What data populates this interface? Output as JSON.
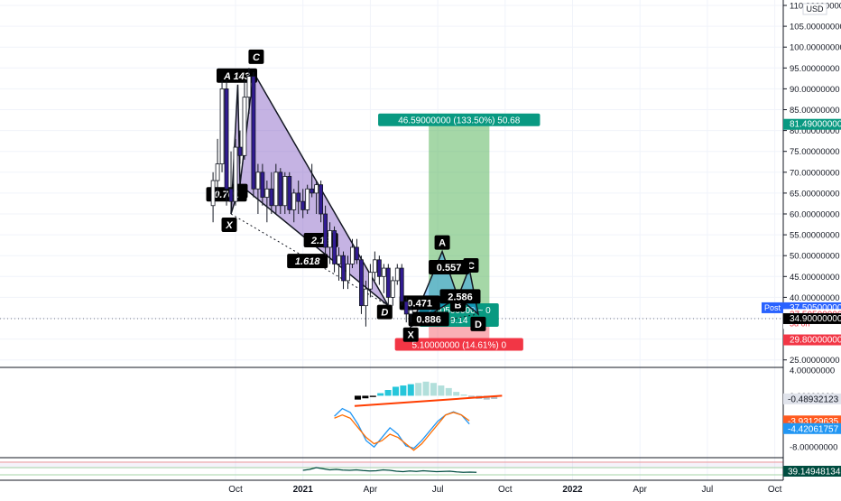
{
  "axis": {
    "currency": "USD",
    "price_ticks": [
      {
        "v": 110,
        "label": "110.00000000"
      },
      {
        "v": 105,
        "label": "105.00000000"
      },
      {
        "v": 100,
        "label": "100.00000000"
      },
      {
        "v": 95,
        "label": "95.00000000"
      },
      {
        "v": 90,
        "label": "90.00000000"
      },
      {
        "v": 85,
        "label": "85.00000000"
      },
      {
        "v": 80,
        "label": "80.00000000"
      },
      {
        "v": 75,
        "label": "75.00000000"
      },
      {
        "v": 70,
        "label": "70.00000000"
      },
      {
        "v": 65,
        "label": "65.00000000"
      },
      {
        "v": 60,
        "label": "60.00000000"
      },
      {
        "v": 55,
        "label": "55.00000000"
      },
      {
        "v": 50,
        "label": "50.00000000"
      },
      {
        "v": 45,
        "label": "45.00000000"
      },
      {
        "v": 40,
        "label": "40.00000000"
      },
      {
        "v": 35,
        "label": "35.00000000"
      },
      {
        "v": 30,
        "label": "30.00000000"
      },
      {
        "v": 25,
        "label": "25.00000000"
      }
    ],
    "time_ticks": [
      {
        "label": "Oct",
        "x": 10,
        "bold": false
      },
      {
        "label": "2021",
        "x": 13,
        "bold": true
      },
      {
        "label": "Apr",
        "x": 16,
        "bold": false
      },
      {
        "label": "Jul",
        "x": 19,
        "bold": false
      },
      {
        "label": "Oct",
        "x": 22,
        "bold": false
      },
      {
        "label": "2022",
        "x": 25,
        "bold": true
      },
      {
        "label": "Apr",
        "x": 28,
        "bold": false
      },
      {
        "label": "Jul",
        "x": 31,
        "bold": false
      },
      {
        "label": "Oct",
        "x": 34,
        "bold": false
      }
    ],
    "osc_ticks": [
      {
        "v": 4,
        "label": "4.00000000"
      },
      {
        "v": 0,
        "label": "0.00000000"
      },
      {
        "v": -4,
        "label": "-4.00000000"
      },
      {
        "v": -8,
        "label": "-8.00000000"
      }
    ]
  },
  "price_tags": [
    {
      "text": "81.49000000",
      "v": 81.49,
      "bg": "#089981",
      "fg": "#ffffff"
    },
    {
      "text": "37.50500000",
      "v": 37.505,
      "bg": "#2962ff",
      "fg": "#ffffff",
      "side": "Post"
    },
    {
      "text": "37.50500000",
      "v": 35.9,
      "bg": "#ffffff",
      "fg": "#f23645",
      "sub": "3d 0h"
    },
    {
      "text": "34.90000000",
      "v": 34.9,
      "bg": "#000000",
      "fg": "#ffffff"
    },
    {
      "text": "29.80000000",
      "v": 29.8,
      "bg": "#f23645",
      "fg": "#ffffff"
    }
  ],
  "osc_tags": [
    {
      "text": "-0.48932123",
      "v": -0.49,
      "bg": "#e0e3eb",
      "fg": "#131722"
    },
    {
      "text": "-3.93129635",
      "v": -3.93,
      "bg": "#ff5a1f",
      "fg": "#ffffff"
    },
    {
      "text": "-4.42061757",
      "v": -4.42,
      "bg": "#2196f3",
      "fg": "#ffffff"
    }
  ],
  "rsi_tag": {
    "text": "39.14948134"
  },
  "position": {
    "profit_label": "46.59000000 (133.50%) 50.68",
    "entry_label_1": "2.60500000 ~ 0",
    "entry_label_2": "9.14",
    "loss_label": "5.10000000 (14.61%) 0",
    "entry": 34.9,
    "target": 81.49,
    "stop": 29.8,
    "x_start": 18.6,
    "x_end": 21.3,
    "profit_color": "#4caf50",
    "loss_color": "#f23645"
  },
  "pattern1_labels": {
    "X": "X",
    "A": "A 143",
    "B": "B",
    "C": "C",
    "D": "D",
    "r_xab": "0.701",
    "r_bcd": "2.19",
    "r_xad": "1.618"
  },
  "pattern2_labels": {
    "X": "X",
    "A": "A",
    "B": "B",
    "C": "C",
    "D": "D",
    "r_xab": "0.471",
    "r_abc": "0.557",
    "r_bcd": "2.586",
    "r_xad": "0.886"
  },
  "chart_data": {
    "type": "candlestick",
    "candles": [
      {
        "x": 9.0,
        "o": 62,
        "h": 70,
        "l": 58,
        "c": 68
      },
      {
        "x": 9.2,
        "o": 68,
        "h": 78,
        "l": 64,
        "c": 72
      },
      {
        "x": 9.4,
        "o": 72,
        "h": 92,
        "l": 70,
        "c": 90
      },
      {
        "x": 9.6,
        "o": 90,
        "h": 92,
        "l": 62,
        "c": 66
      },
      {
        "x": 9.8,
        "o": 66,
        "h": 75,
        "l": 60,
        "c": 63
      },
      {
        "x": 10.0,
        "o": 63,
        "h": 78,
        "l": 62,
        "c": 76
      },
      {
        "x": 10.2,
        "o": 76,
        "h": 80,
        "l": 72,
        "c": 74
      },
      {
        "x": 10.4,
        "o": 74,
        "h": 92,
        "l": 73,
        "c": 88
      },
      {
        "x": 10.6,
        "o": 88,
        "h": 95,
        "l": 84,
        "c": 93
      },
      {
        "x": 10.8,
        "o": 93,
        "h": 94,
        "l": 64,
        "c": 66
      },
      {
        "x": 11.0,
        "o": 66,
        "h": 72,
        "l": 60,
        "c": 70
      },
      {
        "x": 11.2,
        "o": 70,
        "h": 72,
        "l": 62,
        "c": 64
      },
      {
        "x": 11.4,
        "o": 64,
        "h": 68,
        "l": 58,
        "c": 66
      },
      {
        "x": 11.6,
        "o": 66,
        "h": 70,
        "l": 60,
        "c": 62
      },
      {
        "x": 11.8,
        "o": 62,
        "h": 72,
        "l": 60,
        "c": 70
      },
      {
        "x": 12.0,
        "o": 70,
        "h": 71,
        "l": 60,
        "c": 62
      },
      {
        "x": 12.2,
        "o": 62,
        "h": 70,
        "l": 60,
        "c": 69
      },
      {
        "x": 12.4,
        "o": 69,
        "h": 70,
        "l": 60,
        "c": 61
      },
      {
        "x": 12.6,
        "o": 61,
        "h": 66,
        "l": 58,
        "c": 65
      },
      {
        "x": 12.8,
        "o": 65,
        "h": 68,
        "l": 60,
        "c": 63
      },
      {
        "x": 13.0,
        "o": 63,
        "h": 66,
        "l": 59,
        "c": 61
      },
      {
        "x": 13.2,
        "o": 61,
        "h": 67,
        "l": 60,
        "c": 66
      },
      {
        "x": 13.4,
        "o": 66,
        "h": 72,
        "l": 64,
        "c": 65
      },
      {
        "x": 13.6,
        "o": 65,
        "h": 68,
        "l": 60,
        "c": 67
      },
      {
        "x": 13.8,
        "o": 67,
        "h": 68,
        "l": 58,
        "c": 60
      },
      {
        "x": 14.0,
        "o": 60,
        "h": 62,
        "l": 50,
        "c": 52
      },
      {
        "x": 14.2,
        "o": 52,
        "h": 58,
        "l": 48,
        "c": 56
      },
      {
        "x": 14.4,
        "o": 56,
        "h": 57,
        "l": 46,
        "c": 48
      },
      {
        "x": 14.6,
        "o": 48,
        "h": 52,
        "l": 44,
        "c": 50
      },
      {
        "x": 14.8,
        "o": 50,
        "h": 51,
        "l": 42,
        "c": 44
      },
      {
        "x": 15.0,
        "o": 44,
        "h": 50,
        "l": 42,
        "c": 48
      },
      {
        "x": 15.2,
        "o": 48,
        "h": 54,
        "l": 47,
        "c": 52
      },
      {
        "x": 15.4,
        "o": 52,
        "h": 54,
        "l": 48,
        "c": 49
      },
      {
        "x": 15.6,
        "o": 49,
        "h": 50,
        "l": 36,
        "c": 38
      },
      {
        "x": 15.8,
        "o": 38,
        "h": 44,
        "l": 33,
        "c": 42
      },
      {
        "x": 16.0,
        "o": 42,
        "h": 48,
        "l": 40,
        "c": 46
      },
      {
        "x": 16.2,
        "o": 46,
        "h": 51,
        "l": 44,
        "c": 49
      },
      {
        "x": 16.4,
        "o": 49,
        "h": 50,
        "l": 43,
        "c": 45
      },
      {
        "x": 16.6,
        "o": 45,
        "h": 48,
        "l": 41,
        "c": 47
      },
      {
        "x": 16.8,
        "o": 47,
        "h": 48,
        "l": 38,
        "c": 40
      },
      {
        "x": 17.0,
        "o": 40,
        "h": 45,
        "l": 38,
        "c": 44
      },
      {
        "x": 17.2,
        "o": 44,
        "h": 48,
        "l": 43,
        "c": 47
      },
      {
        "x": 17.4,
        "o": 47,
        "h": 48,
        "l": 38,
        "c": 39
      },
      {
        "x": 17.6,
        "o": 39,
        "h": 40,
        "l": 34,
        "c": 36
      },
      {
        "x": 17.8,
        "o": 36,
        "h": 38,
        "l": 34,
        "c": 37
      }
    ],
    "rsi": [
      48,
      52,
      60,
      55,
      50,
      52,
      49,
      48,
      50,
      47,
      45,
      46,
      50,
      48,
      44,
      42,
      45,
      43,
      46,
      44,
      42,
      43,
      44,
      41,
      39,
      40,
      39
    ],
    "osc_hist": [
      -0.6,
      -0.4,
      -0.2,
      0.4,
      0.9,
      1.4,
      1.6,
      1.8,
      2.0,
      2.2,
      2.0,
      1.6,
      1.2,
      0.6,
      0.2,
      -0.2,
      -0.5,
      -0.6,
      -0.5
    ],
    "osc_fast": [
      -3.2,
      -2.0,
      -2.6,
      -4.5,
      -7.0,
      -8.0,
      -6.5,
      -5.0,
      -6.0,
      -7.8,
      -8.2,
      -7.0,
      -5.5,
      -4.0,
      -3.0,
      -2.5,
      -3.0,
      -4.4
    ],
    "osc_slow": [
      -3.5,
      -3.0,
      -3.5,
      -5.0,
      -6.5,
      -7.5,
      -7.0,
      -6.0,
      -6.5,
      -7.5,
      -8.5,
      -7.5,
      -6.0,
      -4.5,
      -3.0,
      -2.6,
      -3.0,
      -3.9
    ]
  }
}
